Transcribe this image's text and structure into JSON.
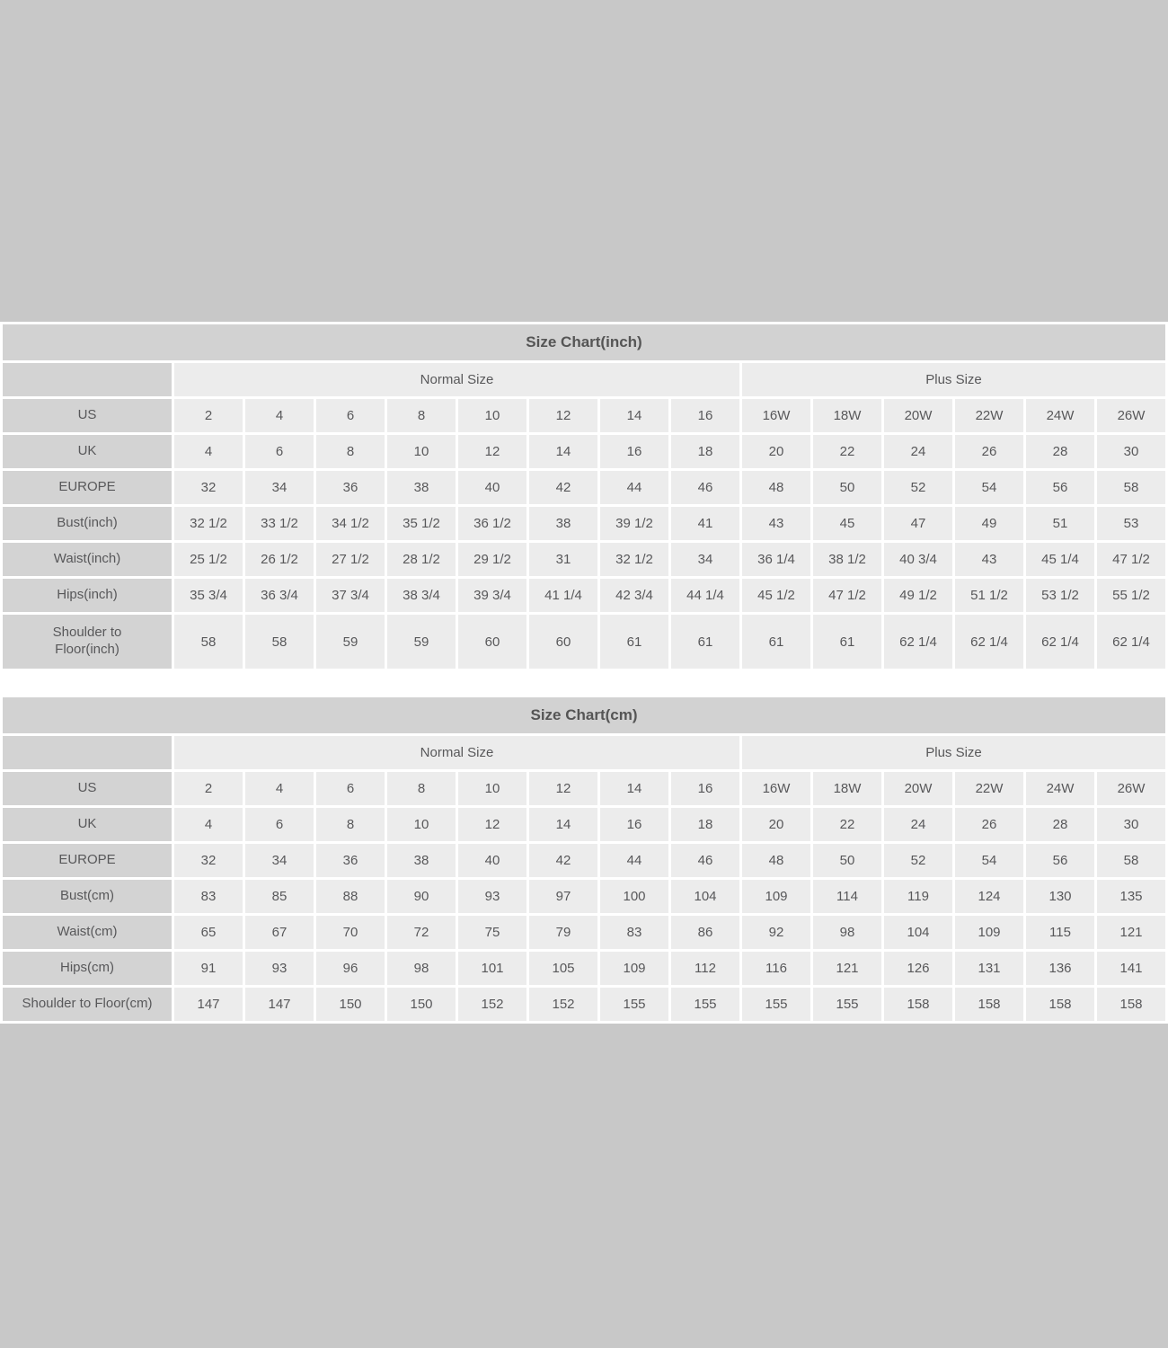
{
  "colors": {
    "page_background": "#c8c8c8",
    "panel_background": "#ffffff",
    "header_fill": "#d2d2d2",
    "label_fill": "#d3d3d3",
    "cell_fill": "#ececec",
    "text": "#58585a"
  },
  "chart_data": [
    {
      "type": "table",
      "title": "Size Chart(inch)",
      "group_headers": [
        {
          "label": "Normal Size",
          "span": 8
        },
        {
          "label": "Plus Size",
          "span": 6
        }
      ],
      "rows": [
        {
          "label": "US",
          "values": [
            "2",
            "4",
            "6",
            "8",
            "10",
            "12",
            "14",
            "16",
            "16W",
            "18W",
            "20W",
            "22W",
            "24W",
            "26W"
          ]
        },
        {
          "label": "UK",
          "values": [
            "4",
            "6",
            "8",
            "10",
            "12",
            "14",
            "16",
            "18",
            "20",
            "22",
            "24",
            "26",
            "28",
            "30"
          ]
        },
        {
          "label": "EUROPE",
          "values": [
            "32",
            "34",
            "36",
            "38",
            "40",
            "42",
            "44",
            "46",
            "48",
            "50",
            "52",
            "54",
            "56",
            "58"
          ]
        },
        {
          "label": "Bust(inch)",
          "values": [
            "32 1/2",
            "33 1/2",
            "34 1/2",
            "35 1/2",
            "36 1/2",
            "38",
            "39 1/2",
            "41",
            "43",
            "45",
            "47",
            "49",
            "51",
            "53"
          ]
        },
        {
          "label": "Waist(inch)",
          "values": [
            "25 1/2",
            "26 1/2",
            "27 1/2",
            "28 1/2",
            "29 1/2",
            "31",
            "32 1/2",
            "34",
            "36 1/4",
            "38 1/2",
            "40 3/4",
            "43",
            "45 1/4",
            "47 1/2"
          ]
        },
        {
          "label": "Hips(inch)",
          "values": [
            "35 3/4",
            "36 3/4",
            "37 3/4",
            "38 3/4",
            "39 3/4",
            "41 1/4",
            "42 3/4",
            "44 1/4",
            "45 1/2",
            "47 1/2",
            "49 1/2",
            "51 1/2",
            "53 1/2",
            "55 1/2"
          ]
        },
        {
          "label": "Shoulder to\nFloor(inch)",
          "tall": true,
          "values": [
            "58",
            "58",
            "59",
            "59",
            "60",
            "60",
            "61",
            "61",
            "61",
            "61",
            "62 1/4",
            "62 1/4",
            "62 1/4",
            "62 1/4"
          ]
        }
      ]
    },
    {
      "type": "table",
      "title": "Size Chart(cm)",
      "group_headers": [
        {
          "label": "Normal Size",
          "span": 8
        },
        {
          "label": "Plus Size",
          "span": 6
        }
      ],
      "rows": [
        {
          "label": "US",
          "values": [
            "2",
            "4",
            "6",
            "8",
            "10",
            "12",
            "14",
            "16",
            "16W",
            "18W",
            "20W",
            "22W",
            "24W",
            "26W"
          ]
        },
        {
          "label": "UK",
          "values": [
            "4",
            "6",
            "8",
            "10",
            "12",
            "14",
            "16",
            "18",
            "20",
            "22",
            "24",
            "26",
            "28",
            "30"
          ]
        },
        {
          "label": "EUROPE",
          "values": [
            "32",
            "34",
            "36",
            "38",
            "40",
            "42",
            "44",
            "46",
            "48",
            "50",
            "52",
            "54",
            "56",
            "58"
          ]
        },
        {
          "label": "Bust(cm)",
          "values": [
            "83",
            "85",
            "88",
            "90",
            "93",
            "97",
            "100",
            "104",
            "109",
            "114",
            "119",
            "124",
            "130",
            "135"
          ]
        },
        {
          "label": "Waist(cm)",
          "values": [
            "65",
            "67",
            "70",
            "72",
            "75",
            "79",
            "83",
            "86",
            "92",
            "98",
            "104",
            "109",
            "115",
            "121"
          ]
        },
        {
          "label": "Hips(cm)",
          "values": [
            "91",
            "93",
            "96",
            "98",
            "101",
            "105",
            "109",
            "112",
            "116",
            "121",
            "126",
            "131",
            "136",
            "141"
          ]
        },
        {
          "label": "Shoulder to Floor(cm)",
          "values": [
            "147",
            "147",
            "150",
            "150",
            "152",
            "152",
            "155",
            "155",
            "155",
            "155",
            "158",
            "158",
            "158",
            "158"
          ]
        }
      ]
    }
  ]
}
